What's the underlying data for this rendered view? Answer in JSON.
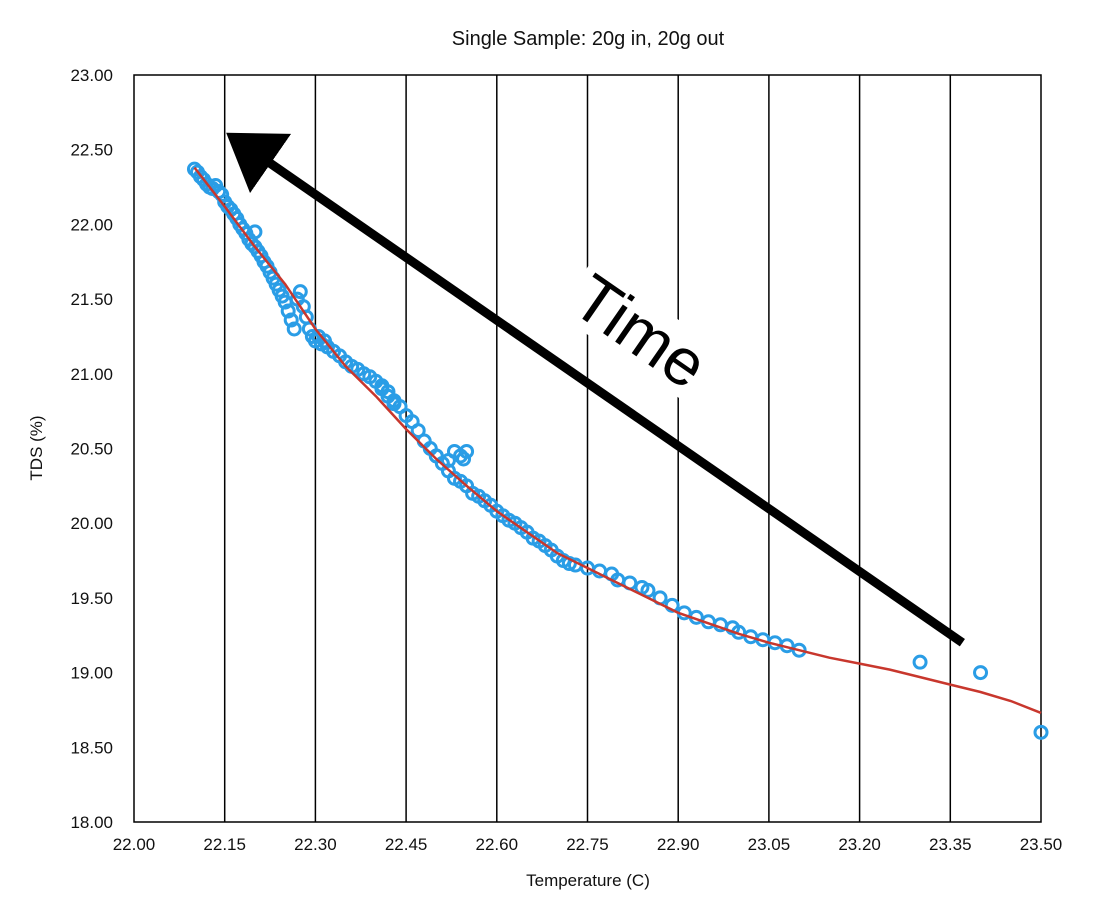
{
  "chart_data": {
    "type": "scatter",
    "title": "Single Sample: 20g in, 20g out",
    "xlabel": "Temperature (C)",
    "ylabel": "TDS (%)",
    "xlim": [
      22.0,
      23.5
    ],
    "ylim": [
      18.0,
      23.0
    ],
    "x_ticks": [
      "22.00",
      "22.15",
      "22.30",
      "22.45",
      "22.60",
      "22.75",
      "22.90",
      "23.05",
      "23.20",
      "23.35",
      "23.50"
    ],
    "y_ticks": [
      "23.00",
      "22.50",
      "22.00",
      "21.50",
      "21.00",
      "20.50",
      "20.00",
      "19.50",
      "19.00",
      "18.50",
      "18.00"
    ],
    "grid": {
      "vertical": true,
      "horizontal": false
    },
    "colors": {
      "points": "#2a9de6",
      "trend": "#c8372d",
      "arrow": "#000000",
      "grid": "#000000"
    },
    "annotation": {
      "text": "Time",
      "arrow_from": [
        23.37,
        19.2
      ],
      "arrow_to": [
        22.2,
        22.48
      ]
    },
    "trendline": {
      "x": [
        22.1,
        22.15,
        22.2,
        22.25,
        22.3,
        22.35,
        22.4,
        22.45,
        22.5,
        22.55,
        22.6,
        22.65,
        22.7,
        22.75,
        22.8,
        22.85,
        22.9,
        22.95,
        23.0,
        23.05,
        23.1,
        23.15,
        23.2,
        23.25,
        23.3,
        23.35,
        23.4,
        23.45,
        23.5
      ],
      "y": [
        22.38,
        22.12,
        21.85,
        21.6,
        21.3,
        21.05,
        20.85,
        20.63,
        20.43,
        20.25,
        20.08,
        19.94,
        19.8,
        19.7,
        19.6,
        19.5,
        19.4,
        19.33,
        19.26,
        19.2,
        19.15,
        19.1,
        19.06,
        19.02,
        18.97,
        18.92,
        18.87,
        18.81,
        18.73
      ]
    },
    "series": [
      {
        "x": [
          22.1,
          22.105,
          22.11,
          22.115,
          22.12,
          22.125,
          22.13,
          22.135,
          22.14,
          22.145,
          22.15,
          22.155,
          22.16,
          22.165,
          22.17,
          22.175,
          22.18,
          22.185,
          22.19,
          22.195,
          22.2,
          22.205,
          22.21,
          22.215,
          22.22,
          22.225,
          22.23,
          22.235,
          22.24,
          22.245,
          22.25,
          22.255,
          22.26,
          22.265,
          22.27,
          22.275,
          22.28,
          22.285,
          22.29,
          22.295,
          22.3,
          22.305,
          22.31,
          22.315,
          22.32,
          22.33,
          22.34,
          22.35,
          22.36,
          22.37,
          22.38,
          22.39,
          22.4,
          22.41,
          22.42,
          22.43,
          22.44,
          22.45,
          22.46,
          22.47,
          22.48,
          22.49,
          22.5,
          22.51,
          22.52,
          22.53,
          22.54,
          22.55,
          22.56,
          22.57,
          22.58,
          22.59,
          22.6,
          22.61,
          22.62,
          22.63,
          22.64,
          22.65,
          22.66,
          22.67,
          22.68,
          22.69,
          22.7,
          22.71,
          22.72,
          22.73,
          22.75,
          22.77,
          22.79,
          22.8,
          22.82,
          22.84,
          22.85,
          22.87,
          22.89,
          22.91,
          22.93,
          22.95,
          22.97,
          22.99,
          23.0,
          23.02,
          23.04,
          23.06,
          23.08,
          23.1,
          22.2,
          22.41,
          22.42,
          22.43,
          22.5,
          22.52,
          22.53,
          22.54,
          22.545,
          22.55,
          23.3,
          23.4,
          23.5
        ],
        "y": [
          22.37,
          22.35,
          22.32,
          22.3,
          22.27,
          22.25,
          22.24,
          22.26,
          22.22,
          22.2,
          22.15,
          22.12,
          22.1,
          22.07,
          22.04,
          22.0,
          21.97,
          21.94,
          21.9,
          21.87,
          21.85,
          21.82,
          21.79,
          21.75,
          21.72,
          21.68,
          21.64,
          21.6,
          21.56,
          21.52,
          21.48,
          21.42,
          21.36,
          21.3,
          21.5,
          21.55,
          21.45,
          21.38,
          21.3,
          21.25,
          21.22,
          21.25,
          21.2,
          21.22,
          21.18,
          21.15,
          21.12,
          21.08,
          21.05,
          21.03,
          21.0,
          20.98,
          20.95,
          20.9,
          20.88,
          20.82,
          20.78,
          20.72,
          20.68,
          20.62,
          20.55,
          20.5,
          20.45,
          20.4,
          20.35,
          20.3,
          20.28,
          20.25,
          20.2,
          20.18,
          20.15,
          20.12,
          20.08,
          20.05,
          20.02,
          20.0,
          19.97,
          19.94,
          19.9,
          19.88,
          19.85,
          19.82,
          19.78,
          19.75,
          19.73,
          19.72,
          19.7,
          19.68,
          19.66,
          19.62,
          19.6,
          19.57,
          19.55,
          19.5,
          19.45,
          19.4,
          19.37,
          19.34,
          19.32,
          19.3,
          19.27,
          19.24,
          19.22,
          19.2,
          19.18,
          19.15,
          21.95,
          20.92,
          20.85,
          20.8,
          20.45,
          20.42,
          20.48,
          20.45,
          20.43,
          20.48,
          19.07,
          19.0,
          18.6
        ]
      }
    ]
  }
}
